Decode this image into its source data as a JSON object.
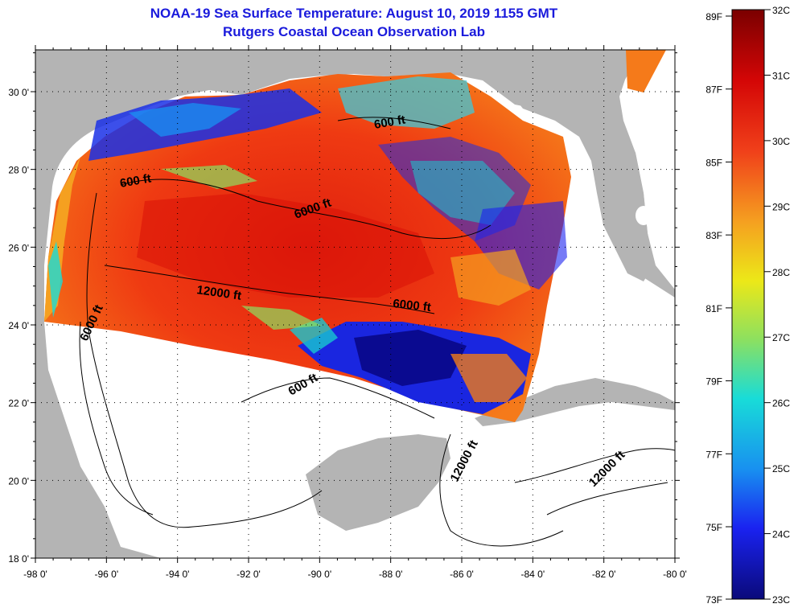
{
  "title": "NOAA-19 Sea Surface Temperature:  August 10, 2019 1155 GMT",
  "subtitle": "Rutgers Coastal Ocean Observation Lab",
  "map": {
    "lon_ticks": [
      "-98 0'",
      "-96 0'",
      "-94 0'",
      "-92 0'",
      "-90 0'",
      "-88 0'",
      "-86 0'",
      "-84 0'",
      "-82 0'",
      "-80 0'"
    ],
    "lat_ticks": [
      "30 0'",
      "28 0'",
      "26 0'",
      "24 0'",
      "22 0'",
      "20 0'",
      "18 0'"
    ],
    "contour_labels": [
      "600 ft",
      "600 ft",
      "6000 ft",
      "12000 ft",
      "6000 ft",
      "6000 ft",
      "600 ft",
      "12000 ft",
      "12000 ft"
    ]
  },
  "colorbar": {
    "fahrenheit": [
      "89F",
      "87F",
      "85F",
      "83F",
      "81F",
      "79F",
      "77F",
      "75F",
      "73F"
    ],
    "celsius": [
      "32C",
      "31C",
      "30C",
      "29C",
      "28C",
      "27C",
      "26C",
      "25C",
      "24C",
      "23C"
    ],
    "colors": [
      "#7a0000",
      "#dd0a0a",
      "#f86818",
      "#f5b81d",
      "#e8e81a",
      "#70e070",
      "#10d8d8",
      "#1a8cf0",
      "#1a20f0",
      "#0a0a80"
    ]
  }
}
